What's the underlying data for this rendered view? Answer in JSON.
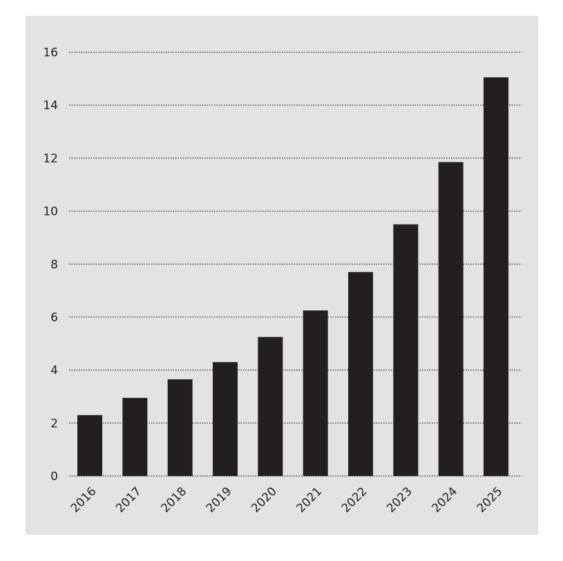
{
  "chart_data": {
    "type": "bar",
    "categories": [
      "2016",
      "2017",
      "2018",
      "2019",
      "2020",
      "2021",
      "2022",
      "2023",
      "2024",
      "2025"
    ],
    "values": [
      2.3,
      2.95,
      3.65,
      4.3,
      5.25,
      6.25,
      7.7,
      9.5,
      11.85,
      15.05
    ],
    "y_ticks": [
      "0",
      "2",
      "4",
      "6",
      "8",
      "10",
      "12",
      "14",
      "16"
    ],
    "ylim": [
      0,
      16
    ],
    "grid": "dotted horizontal",
    "colors": {
      "bar": "#231f20",
      "panel": "#e2e3e4",
      "grid": "#231f20"
    }
  }
}
